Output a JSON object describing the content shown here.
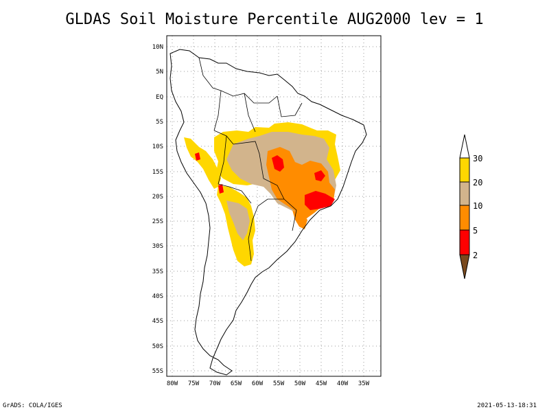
{
  "title": "GLDAS Soil Moisture Percentile AUG2000 lev = 1",
  "footer": {
    "left": "GrADS: COLA/IGES",
    "right": "2021-05-13-18:31"
  },
  "axes": {
    "lat_labels": [
      "10N",
      "5N",
      "EQ",
      "5S",
      "10S",
      "15S",
      "20S",
      "25S",
      "30S",
      "35S",
      "40S",
      "45S",
      "50S",
      "55S"
    ],
    "lon_labels": [
      "80W",
      "75W",
      "70W",
      "65W",
      "60W",
      "55W",
      "50W",
      "45W",
      "40W",
      "35W"
    ]
  },
  "legend": {
    "levels": [
      "2",
      "5",
      "10",
      "20",
      "30"
    ],
    "colors": {
      "below_2": "#7a4a1e",
      "2_to_5": "#ff0000",
      "5_to_10": "#ff8c00",
      "10_to_20": "#d2b48c",
      "20_to_30": "#ffd700",
      "above_30": "#ffffff"
    }
  },
  "colors": {
    "orange": "#ff8c00",
    "tan": "#d2b48c",
    "gold": "#ffd700",
    "red": "#ff0000",
    "dark_red": "#c00000"
  }
}
